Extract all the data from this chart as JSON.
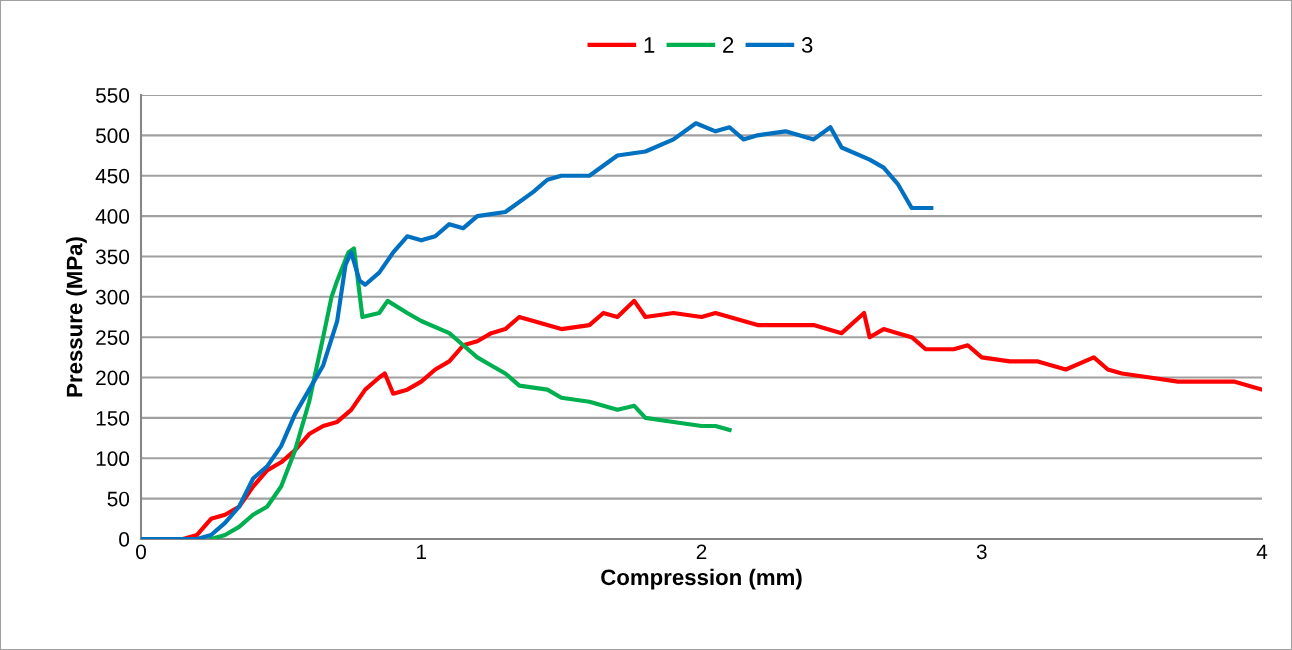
{
  "chart_data": {
    "type": "line",
    "xlabel": "Compression (mm)",
    "ylabel": "Pressure (MPa)",
    "xlim": [
      0,
      4
    ],
    "xticks": [
      0,
      1,
      2,
      3,
      4
    ],
    "ylim": [
      0,
      550
    ],
    "yticks": [
      0,
      50,
      100,
      150,
      200,
      250,
      300,
      350,
      400,
      450,
      500,
      550
    ],
    "grid": "y",
    "legend": "top",
    "marker": "none",
    "line_style": "solid",
    "series": [
      {
        "name": "1",
        "color": "#ff0000",
        "x": [
          0,
          0.15,
          0.2,
          0.25,
          0.3,
          0.35,
          0.4,
          0.45,
          0.5,
          0.55,
          0.6,
          0.65,
          0.7,
          0.75,
          0.8,
          0.85,
          0.87,
          0.9,
          0.95,
          1.0,
          1.05,
          1.1,
          1.15,
          1.2,
          1.25,
          1.3,
          1.35,
          1.4,
          1.45,
          1.5,
          1.6,
          1.65,
          1.7,
          1.76,
          1.8,
          1.9,
          2.0,
          2.05,
          2.1,
          2.2,
          2.3,
          2.4,
          2.5,
          2.58,
          2.6,
          2.65,
          2.7,
          2.75,
          2.8,
          2.9,
          2.95,
          3.0,
          3.1,
          3.2,
          3.3,
          3.4,
          3.45,
          3.5,
          3.6,
          3.7,
          3.8,
          3.9,
          4.0
        ],
        "values": [
          0,
          0,
          5,
          25,
          30,
          40,
          65,
          85,
          95,
          110,
          130,
          140,
          145,
          160,
          185,
          200,
          205,
          180,
          185,
          195,
          210,
          220,
          240,
          245,
          255,
          260,
          275,
          270,
          265,
          260,
          265,
          280,
          275,
          295,
          275,
          280,
          275,
          280,
          275,
          265,
          265,
          265,
          255,
          280,
          250,
          260,
          255,
          250,
          235,
          235,
          240,
          225,
          220,
          220,
          210,
          225,
          210,
          205,
          200,
          195,
          195,
          195,
          185
        ]
      },
      {
        "name": "2",
        "color": "#00b050",
        "x": [
          0.25,
          0.3,
          0.35,
          0.4,
          0.45,
          0.5,
          0.55,
          0.6,
          0.65,
          0.68,
          0.7,
          0.74,
          0.76,
          0.79,
          0.85,
          0.88,
          0.95,
          1.0,
          1.1,
          1.15,
          1.2,
          1.25,
          1.3,
          1.35,
          1.45,
          1.5,
          1.6,
          1.7,
          1.76,
          1.8,
          1.9,
          2.0,
          2.05,
          2.1
        ],
        "values": [
          0,
          5,
          15,
          30,
          40,
          65,
          110,
          170,
          250,
          300,
          320,
          355,
          360,
          275,
          280,
          295,
          280,
          270,
          255,
          240,
          225,
          215,
          205,
          190,
          185,
          175,
          170,
          160,
          165,
          150,
          145,
          140,
          140,
          135
        ]
      },
      {
        "name": "3",
        "color": "#0070c0",
        "x": [
          0,
          0.2,
          0.25,
          0.3,
          0.35,
          0.4,
          0.45,
          0.5,
          0.55,
          0.6,
          0.65,
          0.7,
          0.73,
          0.75,
          0.78,
          0.8,
          0.85,
          0.9,
          0.95,
          1.0,
          1.05,
          1.1,
          1.15,
          1.2,
          1.3,
          1.4,
          1.45,
          1.5,
          1.6,
          1.7,
          1.8,
          1.9,
          1.98,
          2.05,
          2.1,
          2.15,
          2.2,
          2.3,
          2.4,
          2.46,
          2.5,
          2.6,
          2.65,
          2.7,
          2.75,
          2.8,
          2.82
        ],
        "values": [
          0,
          0,
          5,
          20,
          40,
          75,
          90,
          115,
          155,
          185,
          215,
          270,
          340,
          355,
          320,
          315,
          330,
          355,
          375,
          370,
          375,
          390,
          385,
          400,
          405,
          430,
          445,
          450,
          450,
          475,
          480,
          495,
          515,
          505,
          510,
          495,
          500,
          505,
          495,
          510,
          485,
          470,
          460,
          440,
          410,
          410,
          410
        ]
      }
    ]
  }
}
